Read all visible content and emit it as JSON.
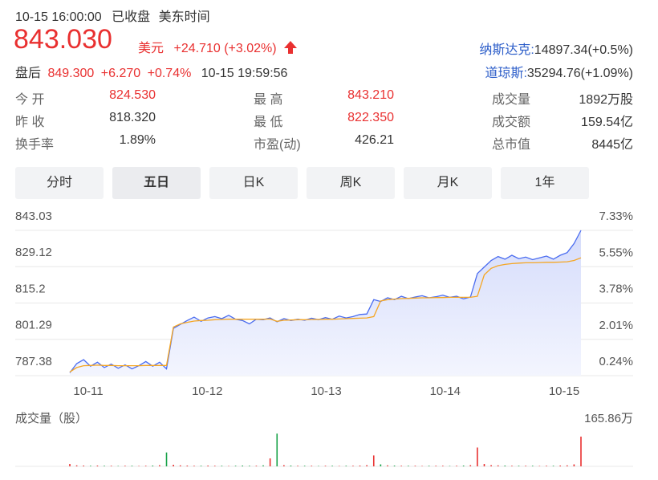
{
  "header": {
    "time": "10-15 16:00:00",
    "status": "已收盘",
    "timezone": "美东时间",
    "price": "843.030",
    "currency": "美元",
    "change": "+24.710",
    "change_pct": "(+3.02%)",
    "after_label": "盘后",
    "after_price": "849.300",
    "after_change": "+6.270",
    "after_pct": "+0.74%",
    "after_time": "10-15 19:59:56",
    "indices": [
      {
        "name": "纳斯达克:",
        "value": "14897.34(+0.5%)"
      },
      {
        "name": "道琼斯:",
        "value": "35294.76(+1.09%)"
      }
    ]
  },
  "stats": [
    [
      {
        "label": "今 开",
        "value": "824.530",
        "color": "#e93030"
      },
      {
        "label": "最 高",
        "value": "843.210",
        "color": "#e93030"
      },
      {
        "label": "成交量",
        "value": "1892万股",
        "color": "#333333"
      }
    ],
    [
      {
        "label": "昨 收",
        "value": "818.320",
        "color": "#333333"
      },
      {
        "label": "最 低",
        "value": "822.350",
        "color": "#e93030"
      },
      {
        "label": "成交额",
        "value": "159.54亿",
        "color": "#333333"
      }
    ],
    [
      {
        "label": "换手率",
        "value": "1.89%",
        "color": "#333333"
      },
      {
        "label": "市盈(动)",
        "value": "426.21",
        "color": "#333333"
      },
      {
        "label": "总市值",
        "value": "8445亿",
        "color": "#333333"
      }
    ]
  ],
  "tabs": {
    "items": [
      "分时",
      "五日",
      "日K",
      "周K",
      "月K",
      "1年"
    ],
    "active": 1
  },
  "chart_data": {
    "type": "line",
    "x_labels": [
      "10-11",
      "10-12",
      "10-13",
      "10-14",
      "10-15"
    ],
    "ylim": [
      787.38,
      843.03
    ],
    "yticks": [
      843.03,
      829.12,
      815.2,
      801.29,
      787.38
    ],
    "y2lim": [
      0.24,
      7.33
    ],
    "y2ticks": [
      {
        "value": 7.33,
        "label": "7.33%"
      },
      {
        "value": 5.55,
        "label": "5.55%"
      },
      {
        "value": 3.78,
        "label": "3.78%"
      },
      {
        "value": 2.01,
        "label": "2.01%"
      },
      {
        "value": 0.24,
        "label": "0.24%"
      }
    ],
    "grid": true,
    "series": [
      {
        "color": "#4a6cf0",
        "values": [
          788.5,
          792.0,
          793.5,
          791.0,
          792.5,
          790.5,
          791.8,
          790.2,
          791.5,
          790.0,
          791.2,
          792.8,
          791.0,
          792.5,
          790.0,
          805.5,
          807.0,
          808.5,
          809.8,
          808.2,
          809.5,
          810.0,
          809.2,
          810.5,
          809.0,
          808.5,
          807.2,
          809.0,
          808.8,
          809.5,
          808.0,
          809.2,
          808.5,
          809.0,
          808.6,
          809.4,
          808.8,
          809.6,
          809.0,
          810.2,
          809.5,
          810.0,
          810.8,
          811.0,
          816.5,
          815.8,
          817.2,
          816.5,
          817.8,
          816.9,
          817.5,
          818.0,
          817.2,
          817.6,
          818.2,
          817.4,
          817.8,
          816.8,
          817.5,
          826.5,
          829.0,
          831.5,
          833.0,
          832.0,
          833.5,
          832.2,
          832.8,
          831.8,
          832.5,
          833.2,
          832.0,
          833.5,
          834.5,
          838.0,
          843.03
        ]
      },
      {
        "color": "#f5a623",
        "values": [
          788.8,
          790.5,
          791.2,
          791.3,
          791.4,
          791.3,
          791.3,
          791.2,
          791.2,
          791.2,
          791.2,
          791.3,
          791.3,
          791.3,
          791.3,
          806.0,
          807.2,
          807.8,
          808.3,
          808.5,
          808.6,
          808.8,
          808.9,
          809.0,
          809.0,
          809.0,
          809.0,
          809.0,
          809.0,
          809.1,
          808.2,
          808.6,
          808.7,
          808.8,
          808.8,
          808.9,
          808.9,
          809.0,
          809.0,
          809.1,
          809.2,
          809.3,
          809.4,
          809.5,
          810.0,
          816.0,
          816.5,
          816.7,
          816.9,
          817.0,
          817.1,
          817.2,
          817.2,
          817.3,
          817.3,
          817.4,
          817.4,
          817.4,
          817.4,
          817.8,
          826.0,
          828.5,
          829.5,
          830.0,
          830.3,
          830.5,
          830.6,
          830.6,
          830.7,
          830.8,
          830.8,
          830.9,
          831.0,
          831.5,
          832.5
        ]
      }
    ]
  },
  "volume": {
    "title": "成交量（股）",
    "max": {
      "value": 165.86,
      "label": "165.86万"
    },
    "values": [
      12,
      5,
      4,
      3,
      4,
      3,
      3,
      2,
      3,
      3,
      2,
      3,
      4,
      6,
      70,
      8,
      5,
      4,
      3,
      3,
      4,
      3,
      3,
      2,
      3,
      4,
      3,
      3,
      5,
      40,
      165,
      6,
      4,
      3,
      3,
      3,
      2,
      3,
      3,
      2,
      3,
      3,
      4,
      6,
      55,
      10,
      5,
      4,
      3,
      3,
      3,
      2,
      3,
      3,
      3,
      2,
      3,
      4,
      6,
      95,
      12,
      6,
      5,
      4,
      3,
      3,
      3,
      3,
      2,
      3,
      3,
      4,
      5,
      10,
      150
    ]
  }
}
